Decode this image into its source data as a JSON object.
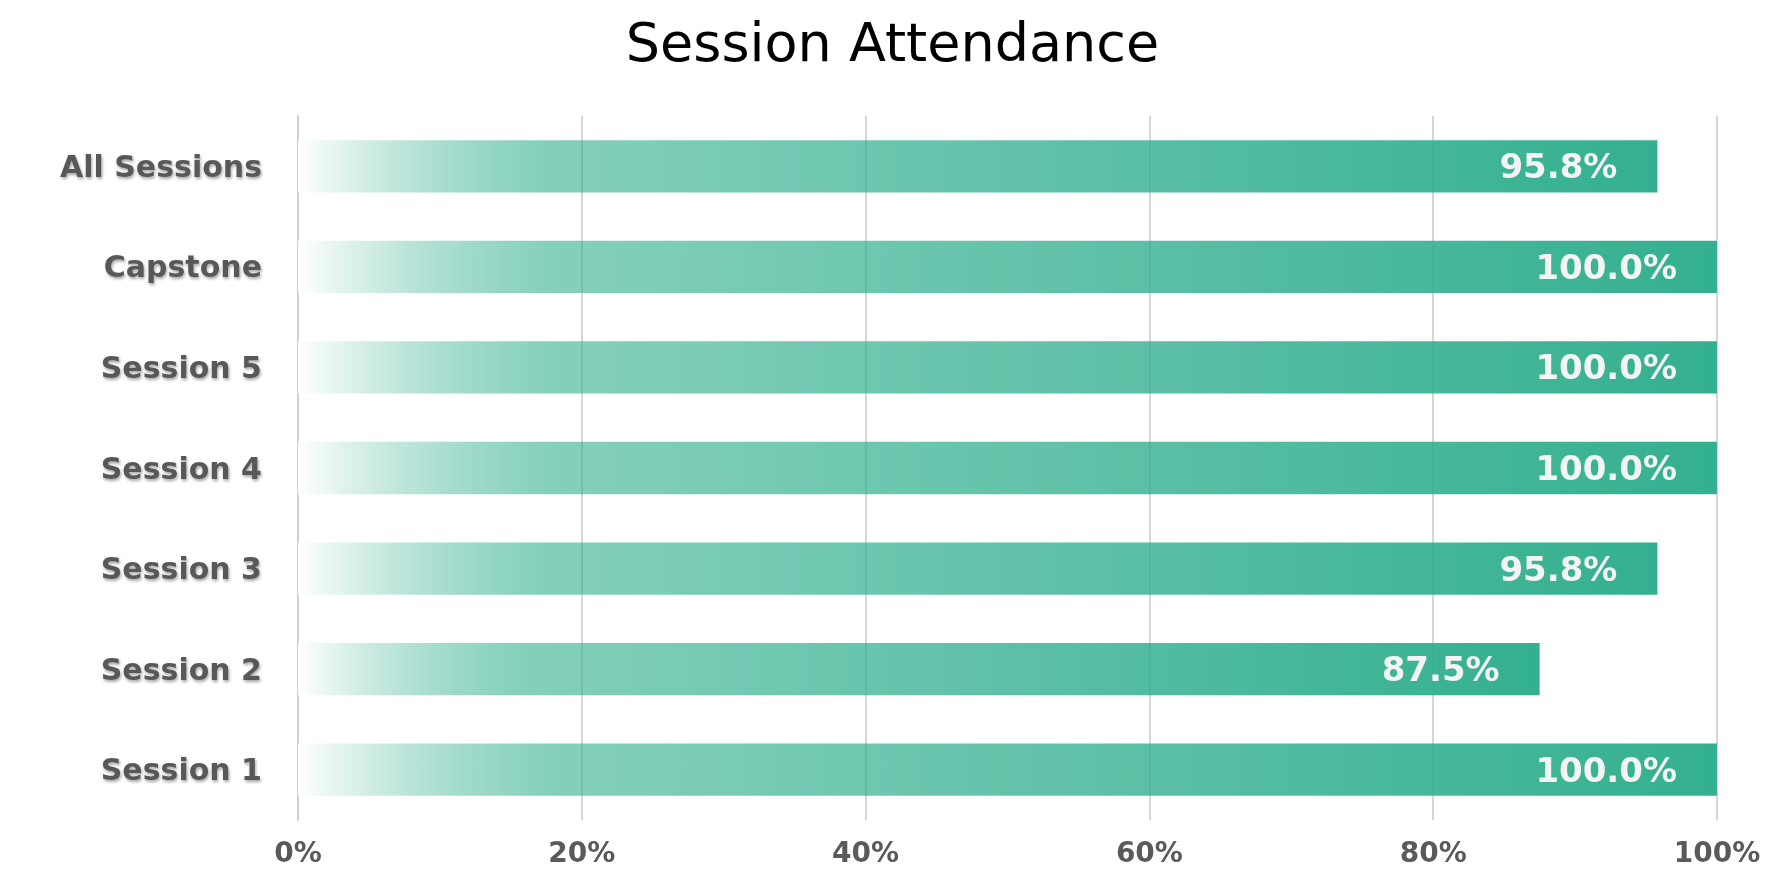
{
  "chart_data": {
    "type": "bar",
    "orientation": "horizontal",
    "title": "Session Attendance",
    "categories": [
      "All Sessions",
      "Capstone",
      "Session 5",
      "Session 4",
      "Session 3",
      "Session 2",
      "Session 1"
    ],
    "values": [
      95.8,
      100,
      100,
      100,
      95.8,
      87.5,
      100
    ],
    "value_labels": [
      "95.8%",
      "100.0%",
      "100.0%",
      "100.0%",
      "95.8%",
      "87.5%",
      "100.0%"
    ],
    "color": "#33b08f",
    "xlim": [
      0,
      100
    ],
    "xticks": [
      {
        "value": 0,
        "label": "0%"
      },
      {
        "value": 20,
        "label": "20%"
      },
      {
        "value": 40,
        "label": "40%"
      },
      {
        "value": 60,
        "label": "60%"
      },
      {
        "value": 80,
        "label": "80%"
      },
      {
        "value": 100,
        "label": "100%"
      }
    ],
    "grid": "x"
  }
}
